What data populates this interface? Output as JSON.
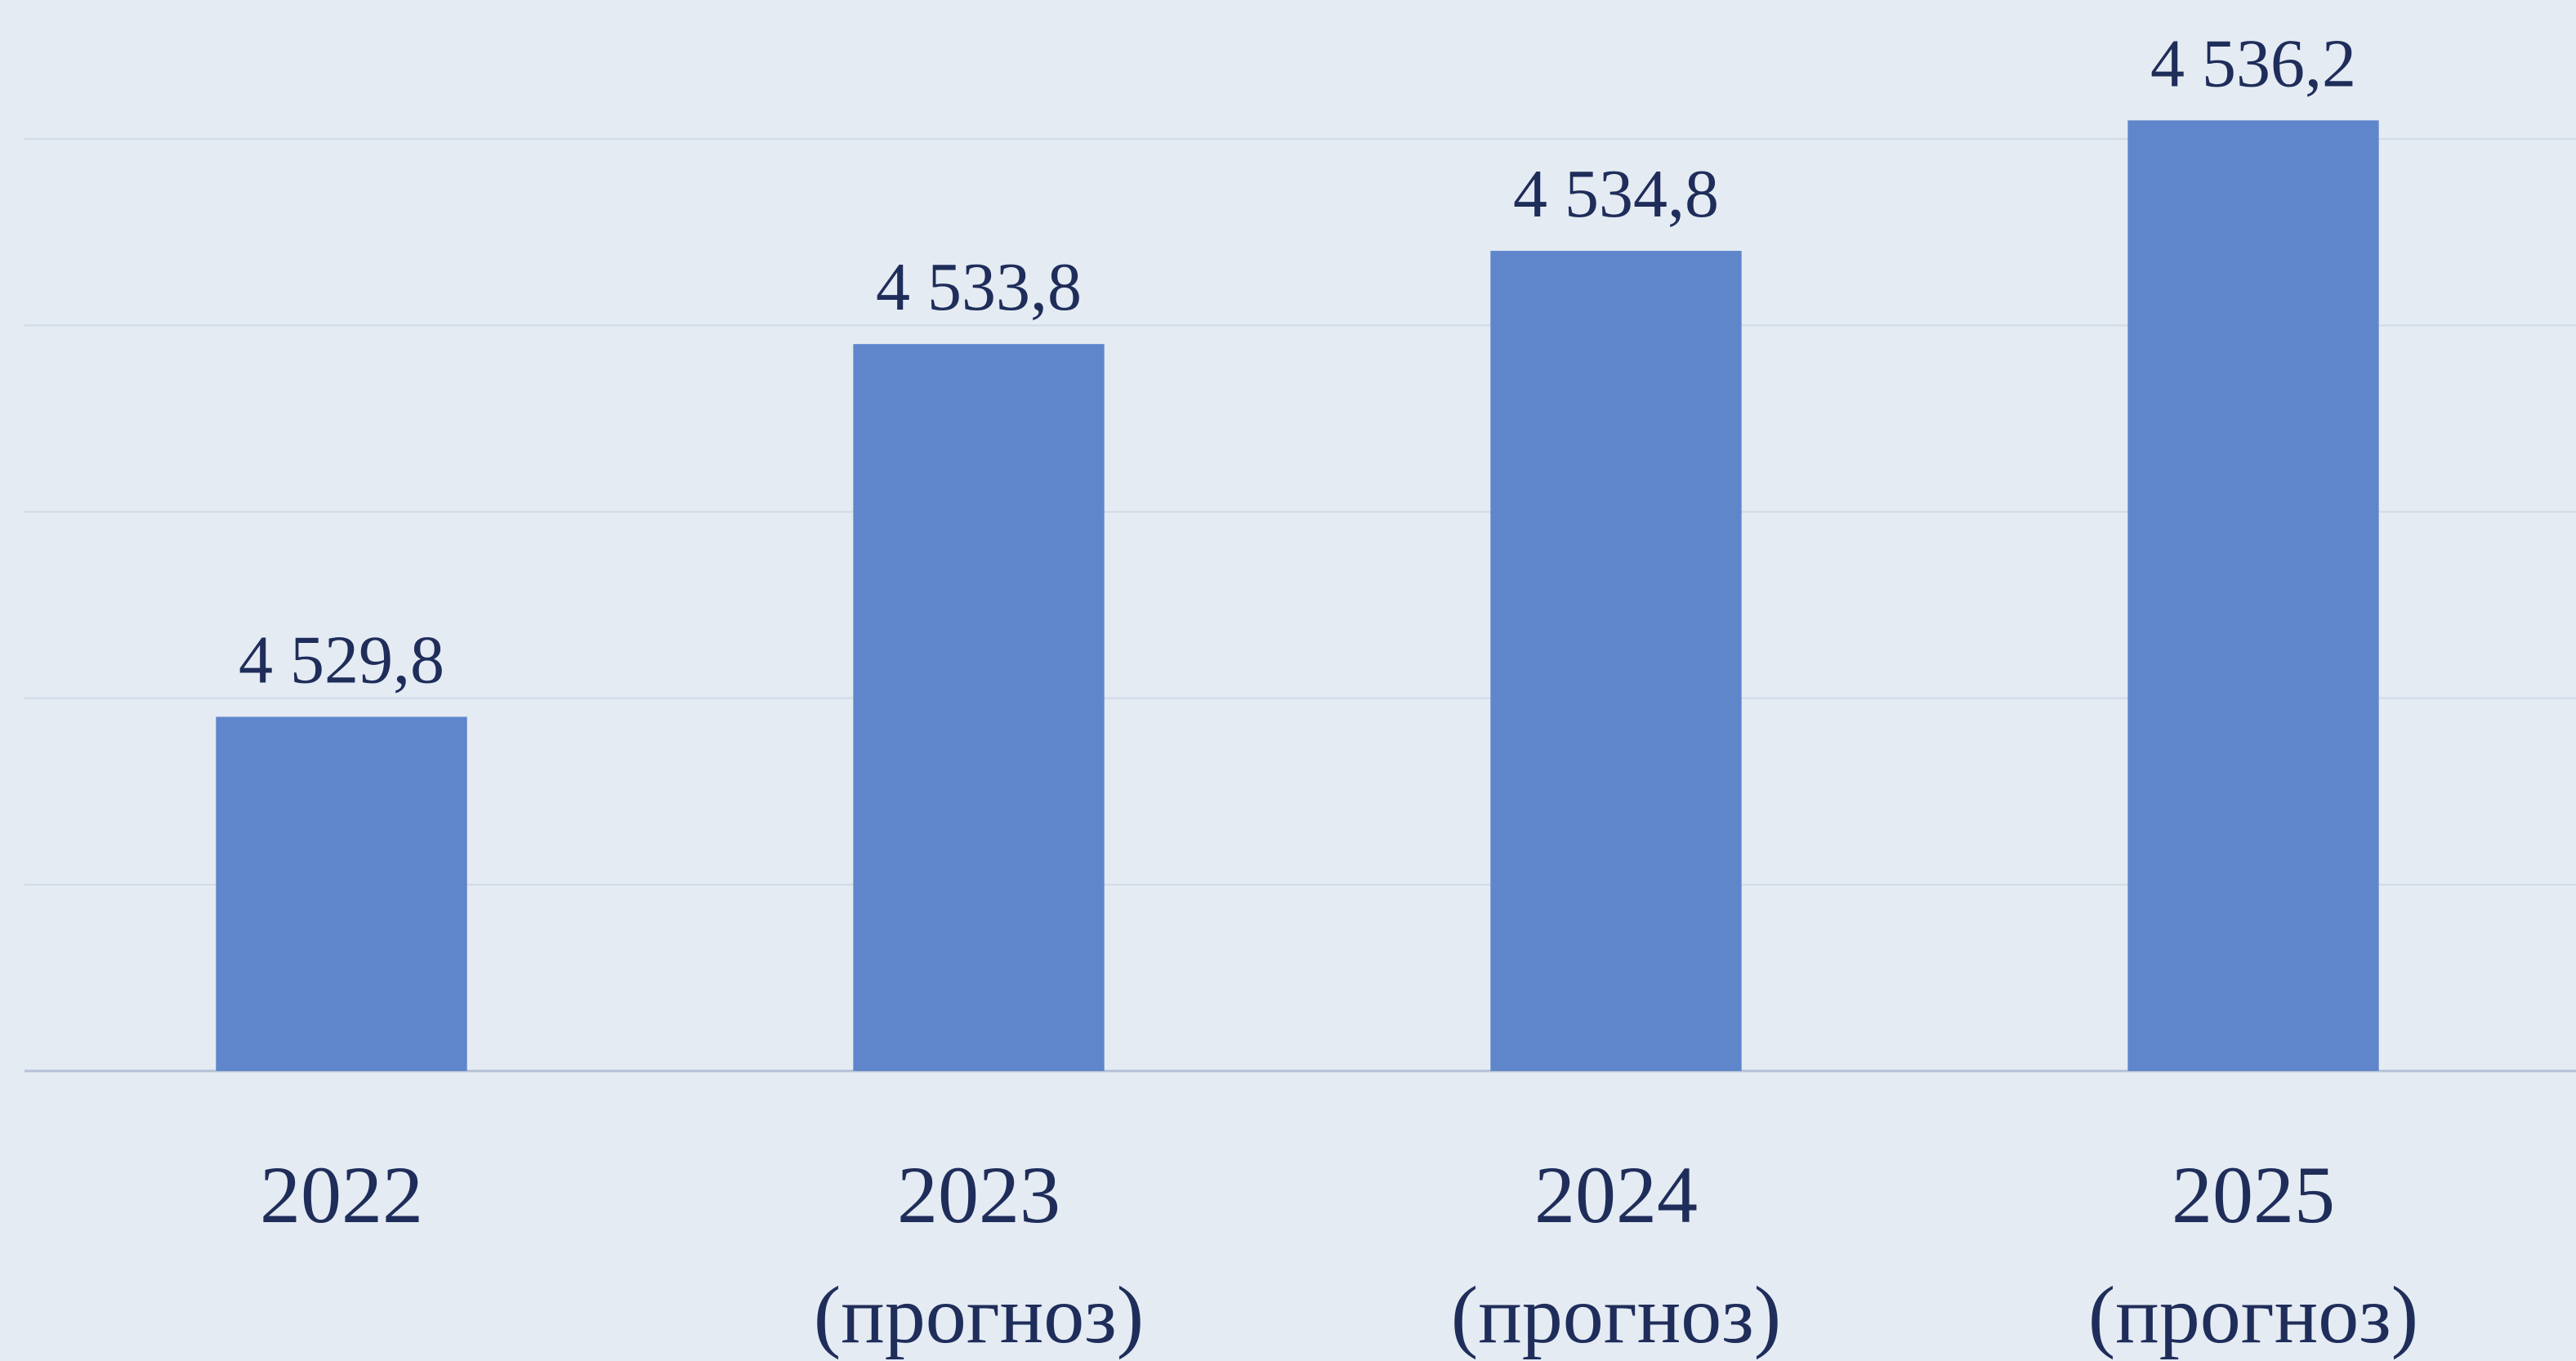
{
  "chart_data": {
    "type": "bar",
    "categories": [
      "2022",
      "2023 (прогноз)",
      "2024 (прогноз)",
      "2025 (прогноз)"
    ],
    "values": [
      4529.8,
      4533.8,
      4534.8,
      4536.2
    ],
    "value_labels": [
      "4 529,8",
      "4 533,8",
      "4 534,8",
      "4 536,2"
    ],
    "color": "#5f86cb",
    "ylim": [
      4526,
      4538
    ],
    "yticks": [
      4526,
      4528,
      4530,
      4532,
      4534,
      4536
    ],
    "grid": true
  }
}
